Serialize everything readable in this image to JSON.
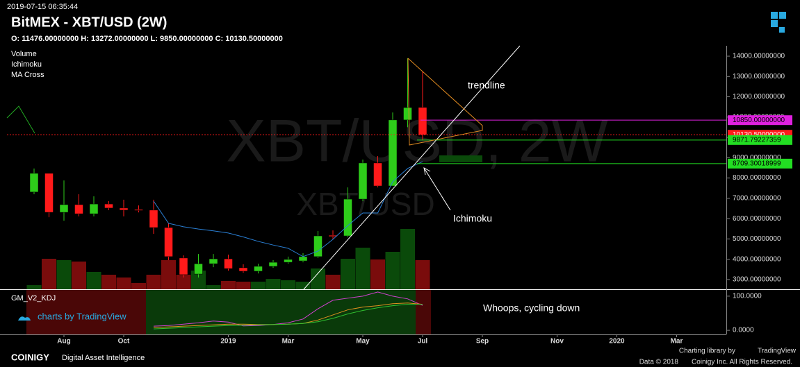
{
  "header": {
    "timestamp": "2019-07-15 06:35:44",
    "title": "BitMEX - XBT/USD (2W)",
    "ohlc": "O: 11476.00000000 H: 13272.00000000 L: 9850.00000000 C: 10130.50000000",
    "studies": [
      "Volume",
      "Ichimoku",
      "MA Cross"
    ],
    "watermark": "XBT/USD, 2W",
    "watermark_small": "XBT/USD"
  },
  "chart_data": {
    "type": "candlestick",
    "open": [
      7310,
      8230,
      6310,
      6690,
      6240,
      6720,
      6520,
      6450,
      6420,
      5560,
      4060,
      3270,
      3780,
      4020,
      3580,
      3410,
      3650,
      3850,
      3920,
      4130,
      5180,
      5150,
      6960,
      8740,
      7610,
      10860,
      11476
    ],
    "high": [
      8470,
      8230,
      7880,
      7200,
      7100,
      6860,
      6930,
      6650,
      6930,
      5770,
      4190,
      4260,
      4260,
      4230,
      3750,
      3780,
      3960,
      4130,
      4300,
      5390,
      5420,
      7540,
      8910,
      9080,
      11230,
      13900,
      13272
    ],
    "low": [
      7200,
      6070,
      5900,
      6110,
      6110,
      6420,
      6110,
      6310,
      5250,
      3960,
      3100,
      3100,
      3610,
      3440,
      3340,
      3300,
      3580,
      3780,
      3850,
      4060,
      5010,
      5080,
      6860,
      7540,
      7610,
      10500,
      9850
    ],
    "close": [
      8230,
      6310,
      6690,
      6240,
      6720,
      6520,
      6420,
      6400,
      5560,
      4130,
      3240,
      3780,
      4020,
      3540,
      3410,
      3650,
      3850,
      3990,
      4130,
      5150,
      5120,
      6960,
      8740,
      7610,
      10860,
      11470,
      10130.5
    ],
    "volume": [
      6,
      44,
      42,
      40,
      25,
      21,
      17,
      9,
      21,
      42,
      21,
      27,
      6,
      12,
      11,
      11,
      15,
      13,
      11,
      30,
      21,
      44,
      60,
      43,
      54,
      87,
      42
    ],
    "ichimoku": {
      "name": "Ichimoku",
      "color": "#2a7fd4",
      "values": [
        null,
        null,
        null,
        null,
        null,
        null,
        null,
        null,
        6860,
        5770,
        5600,
        5490,
        5400,
        5290,
        5100,
        4880,
        4700,
        4540,
        4130,
        4400,
        4980,
        5660,
        6280,
        6280,
        7820,
        8470,
        8810
      ]
    },
    "up_color": "#2ecc1a",
    "down_color": "#ff1a1a",
    "ylim": [
      2520,
      14512
    ],
    "yticks": [
      {
        "value": 3000,
        "label": "3000.00000000"
      },
      {
        "value": 4000,
        "label": "4000.00000000"
      },
      {
        "value": 5000,
        "label": "5000.00000000"
      },
      {
        "value": 6000,
        "label": "6000.00000000"
      },
      {
        "value": 7000,
        "label": "7000.00000000"
      },
      {
        "value": 8000,
        "label": "8000.00000000"
      },
      {
        "value": 9000,
        "label": "9000.00000000"
      },
      {
        "value": 10000,
        "label": "10000.00000000"
      },
      {
        "value": 11000,
        "label": "11000.00000000"
      },
      {
        "value": 12000,
        "label": "12000.00000000"
      },
      {
        "value": 13000,
        "label": "13000.00000000"
      },
      {
        "value": 14000,
        "label": "14000.00000000"
      }
    ],
    "levels": [
      {
        "value": 10850,
        "label": "10850.00000000",
        "color": "#e020e0"
      },
      {
        "value": 10130.5,
        "label": "10130.50000000",
        "color": "#ff1a1a"
      },
      {
        "value": 9871.79227359,
        "label": "9871.79227359",
        "color": "#22dd22"
      },
      {
        "value": 8709.30018999,
        "label": "8709.30018999",
        "color": "#22dd22"
      }
    ],
    "xticks": [
      {
        "value": 2,
        "label": "Aug"
      },
      {
        "value": 6,
        "label": "Oct"
      },
      {
        "value": 13,
        "label": "2019"
      },
      {
        "value": 17,
        "label": "Mar"
      },
      {
        "value": 22,
        "label": "May"
      },
      {
        "value": 26,
        "label": "Jul"
      },
      {
        "value": 30,
        "label": "Sep"
      },
      {
        "value": 35,
        "label": "Nov"
      },
      {
        "value": 39,
        "label": "2020"
      },
      {
        "value": 43,
        "label": "Mar"
      }
    ],
    "annotations": [
      "trendline",
      "Ichimoku",
      "Whoops, cycling down"
    ],
    "kdj": {
      "title": "GM_V2_KDJ",
      "ylim": [
        -12,
        118
      ],
      "yticks": [
        {
          "value": 100,
          "label": "100.0000"
        },
        {
          "value": 0,
          "label": "0.0000"
        }
      ],
      "series": [
        {
          "color": "#d040d0",
          "values": [
            null,
            null,
            null,
            null,
            null,
            null,
            null,
            null,
            12,
            14,
            18,
            22,
            27,
            24,
            13,
            14,
            17,
            22,
            33,
            63,
            88,
            94,
            100,
            112,
            100,
            92,
            73
          ]
        },
        {
          "color": "#e09020",
          "values": [
            null,
            null,
            null,
            null,
            null,
            null,
            null,
            null,
            8,
            10,
            12,
            14,
            16,
            18,
            18,
            17,
            17,
            18,
            20,
            30,
            45,
            60,
            68,
            72,
            78,
            80,
            76
          ]
        },
        {
          "color": "#30c030",
          "values": [
            null,
            null,
            null,
            null,
            null,
            null,
            null,
            null,
            4,
            6,
            8,
            10,
            12,
            14,
            15,
            16,
            17,
            18,
            20,
            25,
            35,
            48,
            58,
            66,
            72,
            76,
            76
          ]
        }
      ]
    }
  },
  "footer": {
    "credit": "charts by TradingView",
    "brand": "COINIGY",
    "tagline": "Digital Asset Intelligence",
    "charting": "Charting library by",
    "tv": "TradingView",
    "copyright": "Data © 2018",
    "rights": "Coinigy Inc. All Rights Reserved."
  }
}
